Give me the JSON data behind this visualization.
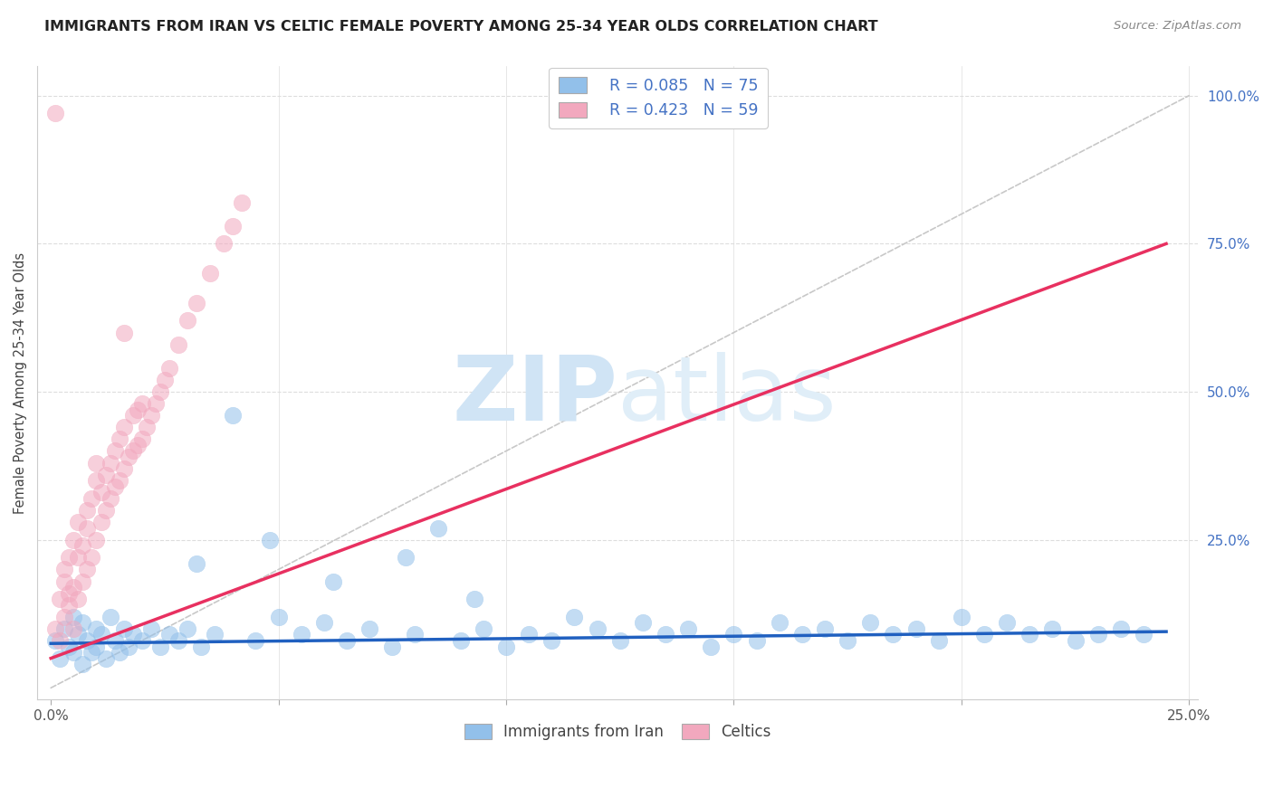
{
  "title": "IMMIGRANTS FROM IRAN VS CELTIC FEMALE POVERTY AMONG 25-34 YEAR OLDS CORRELATION CHART",
  "source_text": "Source: ZipAtlas.com",
  "ylabel": "Female Poverty Among 25-34 Year Olds",
  "xlim": [
    0.0,
    0.25
  ],
  "ylim": [
    0.0,
    1.05
  ],
  "xtick_positions": [
    0.0,
    0.05,
    0.1,
    0.15,
    0.2,
    0.25
  ],
  "xtick_labels": [
    "0.0%",
    "",
    "",
    "",
    "",
    "25.0%"
  ],
  "ytick_vals_right": [
    1.0,
    0.75,
    0.5,
    0.25
  ],
  "ytick_labels_right": [
    "100.0%",
    "75.0%",
    "50.0%",
    "25.0%"
  ],
  "legend_blue_r": "R = 0.085",
  "legend_blue_n": "N = 75",
  "legend_pink_r": "R = 0.423",
  "legend_pink_n": "N = 59",
  "blue_color": "#92C0EA",
  "pink_color": "#F2A8BE",
  "blue_line_color": "#2060C0",
  "pink_line_color": "#E83060",
  "diag_color": "#C8C8C8",
  "watermark_color": "#D0E4F5",
  "background_color": "#FFFFFF",
  "blue_scatter_x": [
    0.001,
    0.002,
    0.003,
    0.004,
    0.005,
    0.005,
    0.006,
    0.007,
    0.007,
    0.008,
    0.009,
    0.01,
    0.01,
    0.011,
    0.012,
    0.013,
    0.014,
    0.015,
    0.016,
    0.017,
    0.018,
    0.02,
    0.022,
    0.024,
    0.026,
    0.028,
    0.03,
    0.033,
    0.036,
    0.04,
    0.045,
    0.05,
    0.055,
    0.06,
    0.065,
    0.07,
    0.075,
    0.08,
    0.085,
    0.09,
    0.095,
    0.1,
    0.105,
    0.11,
    0.115,
    0.12,
    0.125,
    0.13,
    0.135,
    0.14,
    0.145,
    0.15,
    0.155,
    0.16,
    0.165,
    0.17,
    0.175,
    0.18,
    0.185,
    0.19,
    0.195,
    0.2,
    0.205,
    0.21,
    0.215,
    0.22,
    0.225,
    0.23,
    0.235,
    0.24,
    0.032,
    0.048,
    0.062,
    0.078,
    0.093
  ],
  "blue_scatter_y": [
    0.08,
    0.05,
    0.1,
    0.07,
    0.12,
    0.06,
    0.09,
    0.04,
    0.11,
    0.08,
    0.06,
    0.1,
    0.07,
    0.09,
    0.05,
    0.12,
    0.08,
    0.06,
    0.1,
    0.07,
    0.09,
    0.08,
    0.1,
    0.07,
    0.09,
    0.08,
    0.1,
    0.07,
    0.09,
    0.46,
    0.08,
    0.12,
    0.09,
    0.11,
    0.08,
    0.1,
    0.07,
    0.09,
    0.27,
    0.08,
    0.1,
    0.07,
    0.09,
    0.08,
    0.12,
    0.1,
    0.08,
    0.11,
    0.09,
    0.1,
    0.07,
    0.09,
    0.08,
    0.11,
    0.09,
    0.1,
    0.08,
    0.11,
    0.09,
    0.1,
    0.08,
    0.12,
    0.09,
    0.11,
    0.09,
    0.1,
    0.08,
    0.09,
    0.1,
    0.09,
    0.21,
    0.25,
    0.18,
    0.22,
    0.15
  ],
  "pink_scatter_x": [
    0.001,
    0.001,
    0.002,
    0.002,
    0.003,
    0.003,
    0.003,
    0.004,
    0.004,
    0.004,
    0.005,
    0.005,
    0.005,
    0.006,
    0.006,
    0.006,
    0.007,
    0.007,
    0.008,
    0.008,
    0.008,
    0.009,
    0.009,
    0.01,
    0.01,
    0.01,
    0.011,
    0.011,
    0.012,
    0.012,
    0.013,
    0.013,
    0.014,
    0.014,
    0.015,
    0.015,
    0.016,
    0.016,
    0.017,
    0.018,
    0.018,
    0.019,
    0.019,
    0.02,
    0.02,
    0.021,
    0.022,
    0.023,
    0.024,
    0.025,
    0.026,
    0.028,
    0.03,
    0.032,
    0.035,
    0.038,
    0.04,
    0.042,
    0.016
  ],
  "pink_scatter_y": [
    0.97,
    0.1,
    0.08,
    0.15,
    0.12,
    0.18,
    0.2,
    0.14,
    0.16,
    0.22,
    0.1,
    0.17,
    0.25,
    0.15,
    0.22,
    0.28,
    0.18,
    0.24,
    0.2,
    0.27,
    0.3,
    0.22,
    0.32,
    0.25,
    0.35,
    0.38,
    0.28,
    0.33,
    0.3,
    0.36,
    0.32,
    0.38,
    0.34,
    0.4,
    0.35,
    0.42,
    0.37,
    0.44,
    0.39,
    0.4,
    0.46,
    0.41,
    0.47,
    0.42,
    0.48,
    0.44,
    0.46,
    0.48,
    0.5,
    0.52,
    0.54,
    0.58,
    0.62,
    0.65,
    0.7,
    0.75,
    0.78,
    0.82,
    0.6
  ],
  "blue_trend_x": [
    0.0,
    0.245
  ],
  "blue_trend_y": [
    0.075,
    0.095
  ],
  "pink_trend_x": [
    0.0,
    0.245
  ],
  "pink_trend_y": [
    0.05,
    0.75
  ]
}
